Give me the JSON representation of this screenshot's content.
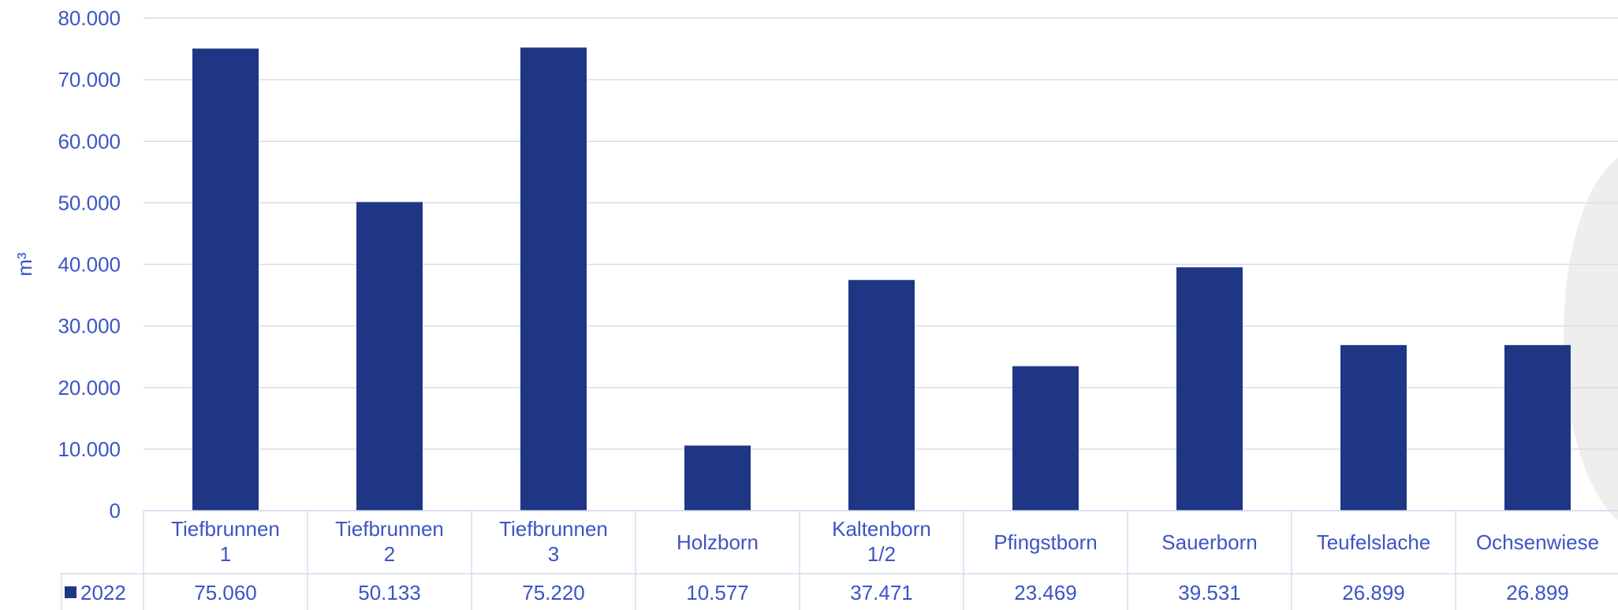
{
  "chart_data": {
    "type": "bar",
    "title": "",
    "xlabel": "",
    "ylabel": "m³",
    "ylim": [
      0,
      80000
    ],
    "y_ticks": [
      "0",
      "10.000",
      "20.000",
      "30.000",
      "40.000",
      "50.000",
      "60.000",
      "70.000",
      "80.000"
    ],
    "grid": true,
    "legend": "data-table-left",
    "categories": [
      [
        "Tiefbrunnen",
        "1"
      ],
      [
        "Tiefbrunnen",
        "2"
      ],
      [
        "Tiefbrunnen",
        "3"
      ],
      [
        "Holzborn"
      ],
      [
        "Kaltenborn",
        "1/2"
      ],
      [
        "Pfingstborn"
      ],
      [
        "Sauerborn"
      ],
      [
        "Teufelslache"
      ],
      [
        "Ochsenwiese"
      ]
    ],
    "series": [
      {
        "name": "2022",
        "color": "#1f3685",
        "values": [
          75060,
          50133,
          75220,
          10577,
          37471,
          23469,
          39531,
          26899,
          26899
        ],
        "value_labels": [
          "75.060",
          "50.133",
          "75.220",
          "10.577",
          "37.471",
          "23.469",
          "39.531",
          "26.899",
          "26.899"
        ]
      }
    ],
    "colors": {
      "axis_text": "#3b55c6",
      "grid": "#d5dcef",
      "bar": "#1f3685",
      "watermark": "#eeeeee"
    }
  }
}
